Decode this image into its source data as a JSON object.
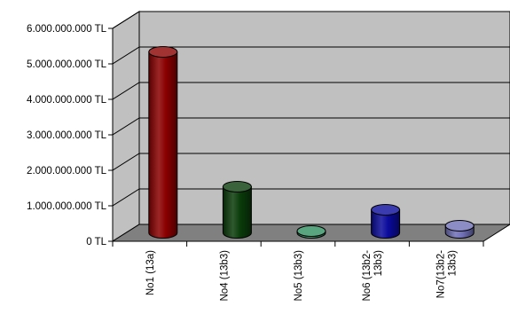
{
  "chart_data": {
    "type": "bar",
    "style": "3d-cylinder",
    "categories": [
      "No1 (13a)",
      "No4 (13b3)",
      "No5 (13b3)",
      "No6 (13b2-13b3)",
      "No7(13b2-13b3)"
    ],
    "category_label_lines": [
      [
        "No1 (13a)"
      ],
      [
        "No4 (13b3)"
      ],
      [
        "No5 (13b3)"
      ],
      [
        "No6 (13b2-",
        "13b3)"
      ],
      [
        "No7(13b2-",
        "13b3)"
      ]
    ],
    "values": [
      5100000000,
      1300000000,
      50000000,
      650000000,
      200000000
    ],
    "colors": [
      "#8b0000",
      "#0a3c0a",
      "#2f8f5f",
      "#0a0a9c",
      "#7070b8"
    ],
    "ylim": [
      0,
      6000000000
    ],
    "yticks": [
      0,
      1000000000,
      2000000000,
      3000000000,
      4000000000,
      5000000000,
      6000000000
    ],
    "ytick_labels": [
      "0 TL",
      "1.000.000.000 TL",
      "2.000.000.000 TL",
      "3.000.000.000 TL",
      "4.000.000.000 TL",
      "5.000.000.000 TL",
      "6.000.000.000 TL"
    ],
    "grid": true,
    "wall_color": "#c0c0c0",
    "floor_color": "#808080",
    "title": "",
    "xlabel": "",
    "ylabel": ""
  }
}
